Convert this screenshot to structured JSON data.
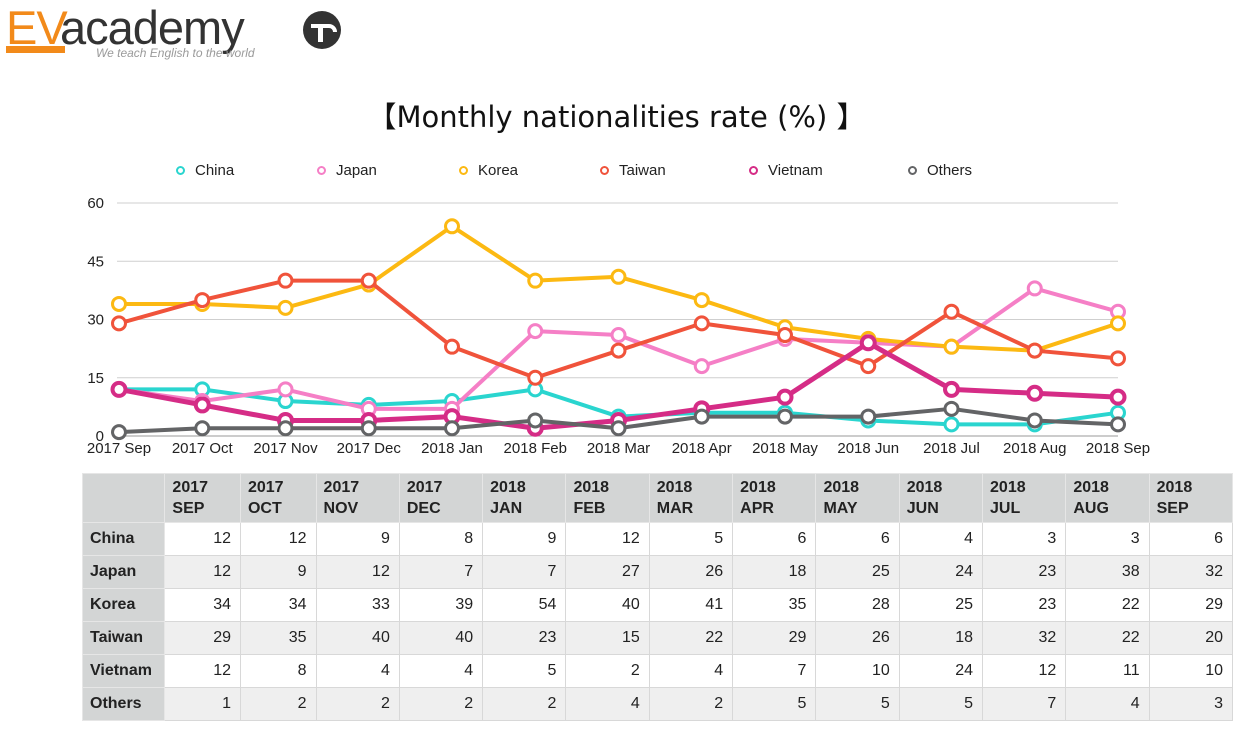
{
  "brand": {
    "logo_ev": "EV",
    "logo_rest": "academy",
    "tagline": "We teach English to the world"
  },
  "chart_data": {
    "type": "line",
    "title": "【Monthly nationalities rate (%) 】",
    "categories": [
      "2017 Sep",
      "2017 Oct",
      "2017 Nov",
      "2017 Dec",
      "2018 Jan",
      "2018 Feb",
      "2018 Mar",
      "2018 Apr",
      "2018 May",
      "2018 Jun",
      "2018 Jul",
      "2018 Aug",
      "2018 Sep"
    ],
    "ylim": [
      0,
      60
    ],
    "yticks": [
      0,
      15,
      30,
      45,
      60
    ],
    "grid": true,
    "legend_position": "top",
    "series": [
      {
        "name": "China",
        "color": "#2ad5cf",
        "values": [
          12,
          12,
          9,
          8,
          9,
          12,
          5,
          6,
          6,
          4,
          3,
          3,
          6
        ]
      },
      {
        "name": "Japan",
        "color": "#f57fc6",
        "values": [
          12,
          9,
          12,
          7,
          7,
          27,
          26,
          18,
          25,
          24,
          23,
          38,
          32
        ]
      },
      {
        "name": "Korea",
        "color": "#fcb912",
        "values": [
          34,
          34,
          33,
          39,
          54,
          40,
          41,
          35,
          28,
          25,
          23,
          22,
          29
        ]
      },
      {
        "name": "Taiwan",
        "color": "#f0533b",
        "values": [
          29,
          35,
          40,
          40,
          23,
          15,
          22,
          29,
          26,
          18,
          32,
          22,
          20
        ]
      },
      {
        "name": "Vietnam",
        "color": "#d52c86",
        "values": [
          12,
          8,
          4,
          4,
          5,
          2,
          4,
          7,
          10,
          24,
          12,
          11,
          10
        ]
      },
      {
        "name": "Others",
        "color": "#636466",
        "values": [
          1,
          2,
          2,
          2,
          2,
          4,
          2,
          5,
          5,
          5,
          7,
          4,
          3
        ]
      }
    ]
  },
  "table": {
    "headers": [
      [
        "2017",
        "SEP"
      ],
      [
        "2017",
        "OCT"
      ],
      [
        "2017",
        "NOV"
      ],
      [
        "2017",
        "DEC"
      ],
      [
        "2018",
        "JAN"
      ],
      [
        "2018",
        "FEB"
      ],
      [
        "2018",
        "MAR"
      ],
      [
        "2018",
        "APR"
      ],
      [
        "2018",
        "MAY"
      ],
      [
        "2018",
        "JUN"
      ],
      [
        "2018",
        "JUL"
      ],
      [
        "2018",
        "AUG"
      ],
      [
        "2018",
        "SEP"
      ]
    ],
    "rows": [
      {
        "label": "China",
        "values": [
          12,
          12,
          9,
          8,
          9,
          12,
          5,
          6,
          6,
          4,
          3,
          3,
          6
        ]
      },
      {
        "label": "Japan",
        "values": [
          12,
          9,
          12,
          7,
          7,
          27,
          26,
          18,
          25,
          24,
          23,
          38,
          32
        ]
      },
      {
        "label": "Korea",
        "values": [
          34,
          34,
          33,
          39,
          54,
          40,
          41,
          35,
          28,
          25,
          23,
          22,
          29
        ]
      },
      {
        "label": "Taiwan",
        "values": [
          29,
          35,
          40,
          40,
          23,
          15,
          22,
          29,
          26,
          18,
          32,
          22,
          20
        ]
      },
      {
        "label": "Vietnam",
        "values": [
          12,
          8,
          4,
          4,
          5,
          2,
          4,
          7,
          10,
          24,
          12,
          11,
          10
        ]
      },
      {
        "label": "Others",
        "values": [
          1,
          2,
          2,
          2,
          2,
          4,
          2,
          5,
          5,
          5,
          7,
          4,
          3
        ]
      }
    ]
  }
}
